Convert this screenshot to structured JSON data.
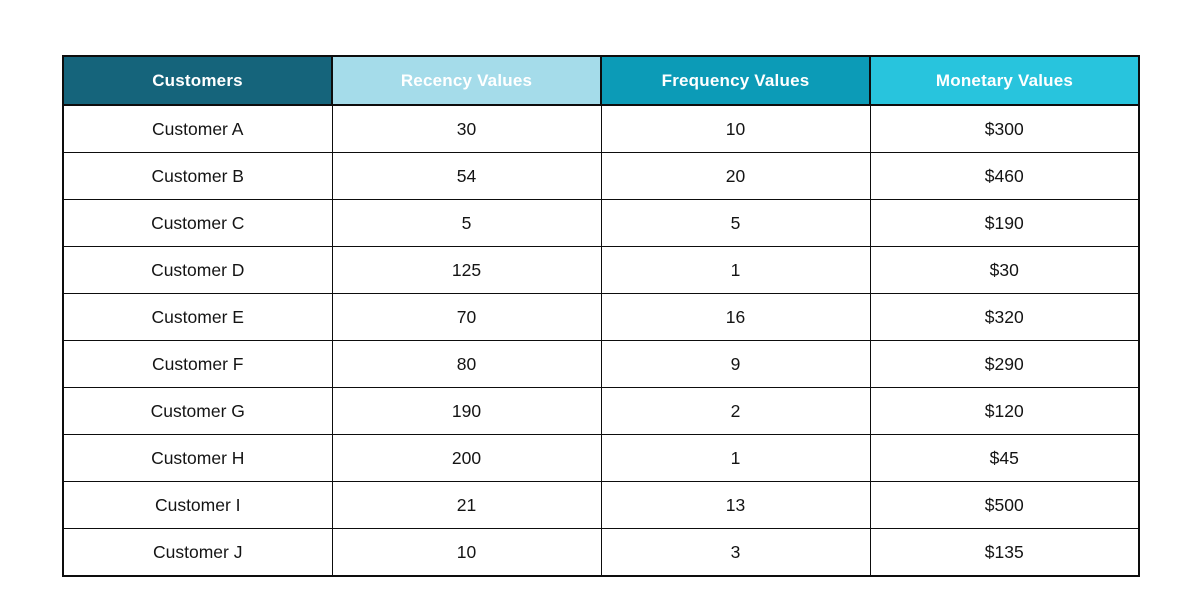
{
  "colors": {
    "header_customers_bg": "#15647b",
    "header_recency_bg": "#a5dcea",
    "header_frequency_bg": "#0c9bb7",
    "header_monetary_bg": "#28c4dd",
    "header_text": "#ffffff",
    "border": "#0d0d0d",
    "page_background": "#ffffff"
  },
  "chart_data": {
    "type": "table",
    "title": "",
    "columns": [
      "Customers",
      "Recency Values",
      "Frequency Values",
      "Monetary Values"
    ],
    "rows": [
      [
        "Customer A",
        30,
        10,
        "$300"
      ],
      [
        "Customer B",
        54,
        20,
        "$460"
      ],
      [
        "Customer C",
        5,
        5,
        "$190"
      ],
      [
        "Customer D",
        125,
        1,
        "$30"
      ],
      [
        "Customer E",
        70,
        16,
        "$320"
      ],
      [
        "Customer F",
        80,
        9,
        "$290"
      ],
      [
        "Customer G",
        190,
        2,
        "$120"
      ],
      [
        "Customer H",
        200,
        1,
        "$45"
      ],
      [
        "Customer I",
        21,
        13,
        "$500"
      ],
      [
        "Customer J",
        10,
        3,
        "$135"
      ]
    ],
    "series": [
      {
        "name": "Recency Values",
        "values": [
          30,
          54,
          5,
          125,
          70,
          80,
          190,
          200,
          21,
          10
        ]
      },
      {
        "name": "Frequency Values",
        "values": [
          10,
          20,
          5,
          1,
          16,
          9,
          2,
          1,
          13,
          3
        ]
      },
      {
        "name": "Monetary Values ($)",
        "values": [
          300,
          460,
          190,
          30,
          320,
          290,
          120,
          45,
          500,
          135
        ]
      }
    ],
    "categories": [
      "Customer A",
      "Customer B",
      "Customer C",
      "Customer D",
      "Customer E",
      "Customer F",
      "Customer G",
      "Customer H",
      "Customer I",
      "Customer J"
    ]
  }
}
